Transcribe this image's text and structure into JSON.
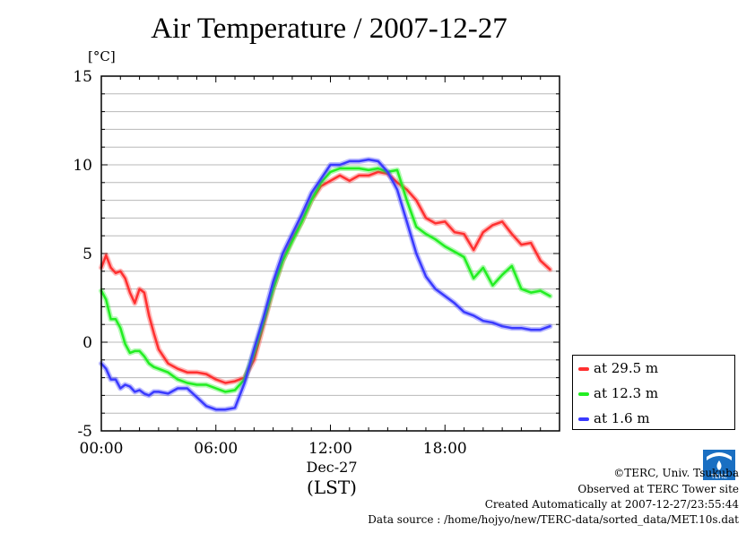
{
  "title": "Air Temperature / 2007-12-27",
  "unit": "[°C]",
  "x_category": "Dec-27",
  "x_axis_label": "(LST)",
  "footer": {
    "copyright": "©TERC, Univ. Tsukuba",
    "observed": "Observed at TERC Tower site",
    "created": "Created Automatically at 2007-12-27/23:55:44",
    "source": "Data source : /home/hojyo/new/TERC-data/sorted_data/MET.10s.dat"
  },
  "logo_text": "TERC",
  "colors": {
    "red": "#ff3030",
    "green": "#22ee22",
    "blue": "#3a3aff"
  },
  "chart_data": {
    "type": "line",
    "xlim": [
      0,
      24
    ],
    "ylim": [
      -5,
      15
    ],
    "x_ticks": [
      {
        "value": 0,
        "label": "00:00"
      },
      {
        "value": 6,
        "label": "06:00"
      },
      {
        "value": 12,
        "label": "12:00"
      },
      {
        "value": 18,
        "label": "18:00"
      }
    ],
    "y_ticks": [
      {
        "value": -5,
        "label": "-5"
      },
      {
        "value": 0,
        "label": "0"
      },
      {
        "value": 5,
        "label": "5"
      },
      {
        "value": 10,
        "label": "10"
      },
      {
        "value": 15,
        "label": "15"
      }
    ],
    "grid": true,
    "legend_position": "right",
    "series": [
      {
        "name": "at 29.5 m",
        "color": "#ff3030",
        "x": [
          0,
          0.25,
          0.5,
          0.75,
          1,
          1.25,
          1.5,
          1.75,
          2,
          2.25,
          2.5,
          2.75,
          3,
          3.5,
          4,
          4.5,
          5,
          5.5,
          6,
          6.5,
          7,
          7.5,
          8,
          8.5,
          9,
          9.5,
          10,
          10.5,
          11,
          11.5,
          12,
          12.5,
          13,
          13.5,
          14,
          14.5,
          15,
          15.5,
          16,
          16.5,
          17,
          17.5,
          18,
          18.5,
          19,
          19.5,
          20,
          20.5,
          21,
          21.5,
          22,
          22.5,
          23,
          23.5
        ],
        "y": [
          4.2,
          4.9,
          4.2,
          3.9,
          4.0,
          3.6,
          2.8,
          2.2,
          3.0,
          2.8,
          1.5,
          0.5,
          -0.4,
          -1.2,
          -1.5,
          -1.7,
          -1.7,
          -1.8,
          -2.1,
          -2.3,
          -2.2,
          -2.0,
          -1.0,
          1.0,
          3.0,
          4.6,
          5.8,
          6.8,
          8.0,
          8.8,
          9.1,
          9.4,
          9.1,
          9.4,
          9.4,
          9.6,
          9.5,
          9.0,
          8.6,
          8.0,
          7.0,
          6.7,
          6.8,
          6.2,
          6.1,
          5.2,
          6.2,
          6.6,
          6.8,
          6.1,
          5.5,
          5.6,
          4.6,
          4.1
        ]
      },
      {
        "name": "at 12.3 m",
        "color": "#22ee22",
        "x": [
          0,
          0.25,
          0.5,
          0.75,
          1,
          1.25,
          1.5,
          1.75,
          2,
          2.25,
          2.5,
          2.75,
          3,
          3.5,
          4,
          4.5,
          5,
          5.5,
          6,
          6.5,
          7,
          7.5,
          8,
          8.5,
          9,
          9.5,
          10,
          10.5,
          11,
          11.5,
          12,
          12.5,
          13,
          13.5,
          14,
          14.5,
          15,
          15.5,
          16,
          16.5,
          17,
          17.5,
          18,
          18.5,
          19,
          19.5,
          20,
          20.5,
          21,
          21.5,
          22,
          22.5,
          23,
          23.5
        ],
        "y": [
          2.9,
          2.4,
          1.3,
          1.3,
          0.8,
          -0.1,
          -0.6,
          -0.5,
          -0.5,
          -0.8,
          -1.2,
          -1.4,
          -1.5,
          -1.7,
          -2.1,
          -2.3,
          -2.4,
          -2.4,
          -2.6,
          -2.8,
          -2.7,
          -2.1,
          -0.6,
          1.2,
          3.0,
          4.6,
          5.7,
          6.8,
          8.0,
          9.0,
          9.6,
          9.8,
          9.8,
          9.8,
          9.7,
          9.8,
          9.6,
          9.7,
          8.0,
          6.5,
          6.1,
          5.8,
          5.4,
          5.1,
          4.8,
          3.6,
          4.2,
          3.2,
          3.8,
          4.3,
          3.0,
          2.8,
          2.9,
          2.6
        ]
      },
      {
        "name": "at 1.6 m",
        "color": "#3a3aff",
        "x": [
          0,
          0.25,
          0.5,
          0.75,
          1,
          1.25,
          1.5,
          1.75,
          2,
          2.25,
          2.5,
          2.75,
          3,
          3.5,
          4,
          4.5,
          5,
          5.5,
          6,
          6.5,
          7,
          7.5,
          8,
          8.5,
          9,
          9.5,
          10,
          10.5,
          11,
          11.5,
          12,
          12.5,
          13,
          13.5,
          14,
          14.5,
          15,
          15.5,
          16,
          16.5,
          17,
          17.5,
          18,
          18.5,
          19,
          19.5,
          20,
          20.5,
          21,
          21.5,
          22,
          22.5,
          23,
          23.5
        ],
        "y": [
          -1.2,
          -1.5,
          -2.1,
          -2.1,
          -2.6,
          -2.4,
          -2.5,
          -2.8,
          -2.7,
          -2.9,
          -3.0,
          -2.8,
          -2.8,
          -2.9,
          -2.6,
          -2.6,
          -3.1,
          -3.6,
          -3.8,
          -3.8,
          -3.7,
          -2.3,
          -0.4,
          1.4,
          3.4,
          5.0,
          6.1,
          7.2,
          8.4,
          9.2,
          10.0,
          10.0,
          10.2,
          10.2,
          10.3,
          10.2,
          9.6,
          8.6,
          6.8,
          5.0,
          3.7,
          3.0,
          2.6,
          2.2,
          1.7,
          1.5,
          1.2,
          1.1,
          0.9,
          0.8,
          0.8,
          0.7,
          0.7,
          0.9
        ]
      }
    ]
  }
}
